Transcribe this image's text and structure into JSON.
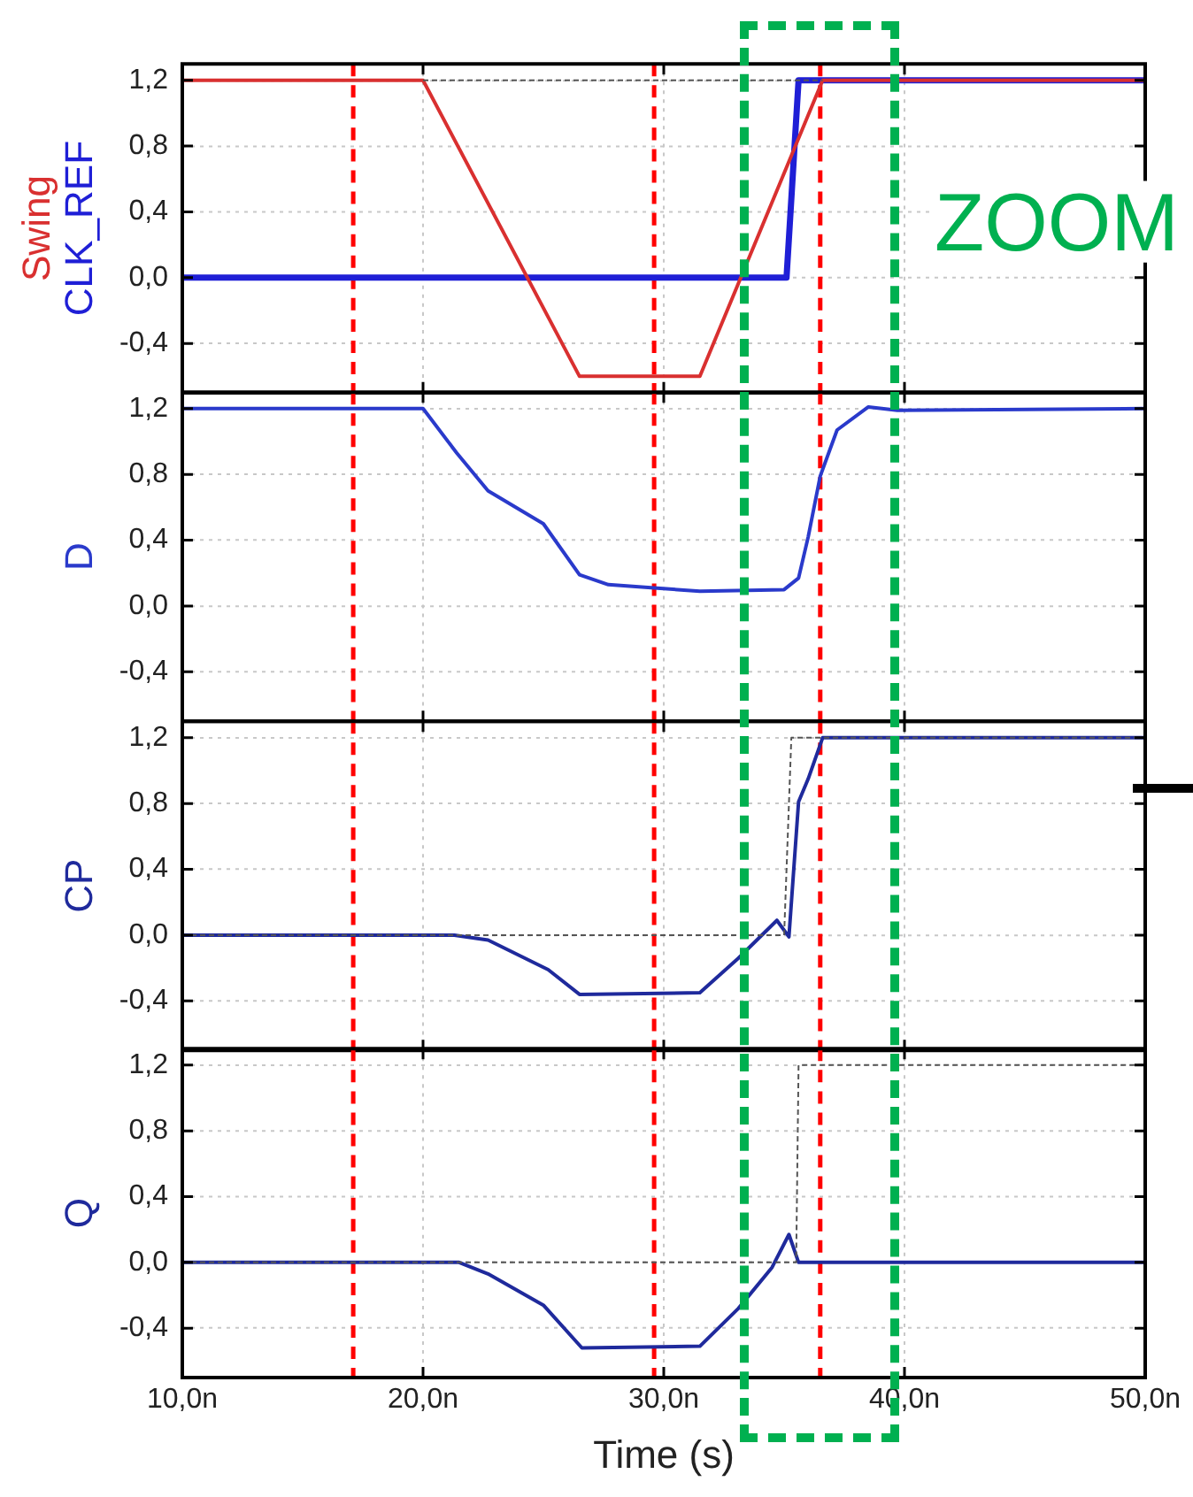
{
  "chart_data": [
    {
      "type": "line",
      "tick_labels": "y",
      "grid": true,
      "legend": false,
      "marker": "none",
      "xlim": [
        10,
        50
      ],
      "ylim": [
        -0.7,
        1.3
      ],
      "xticks": [
        {
          "value": 10,
          "label": null
        },
        {
          "value": 20,
          "label": null
        },
        {
          "value": 30,
          "label": null
        },
        {
          "value": 40,
          "label": null
        },
        {
          "value": 50,
          "label": null
        }
      ],
      "yticks": [
        {
          "value": -0.4,
          "label": "-0,4"
        },
        {
          "value": 0,
          "label": "0,0"
        },
        {
          "value": 0.4,
          "label": "0,4"
        },
        {
          "value": 0.8,
          "label": "0,8"
        },
        {
          "value": 1.2,
          "label": "1,2"
        }
      ],
      "annotations": [
        "ZOOM"
      ],
      "ref_lines": [
        {
          "axis": "x",
          "value": 17.1,
          "color": "#ff0000",
          "line_style": "dashed"
        },
        {
          "axis": "x",
          "value": 29.6,
          "color": "#ff0000",
          "line_style": "dashed"
        },
        {
          "axis": "x",
          "value": 36.5,
          "color": "#ff0000",
          "line_style": "dashed"
        }
      ],
      "series": [
        {
          "name": "Swing",
          "color": "#d93030",
          "x": [
            10,
            20,
            26.5,
            31.5,
            36.6,
            50
          ],
          "values": [
            1.2,
            1.2,
            -0.6,
            -0.6,
            1.2,
            1.2
          ]
        },
        {
          "name": "CLK_REF",
          "color": "#1f1fd6",
          "x": [
            10,
            35.1,
            35.6,
            50
          ],
          "values": [
            0,
            0,
            1.2,
            1.2
          ]
        },
        {
          "color": "#555555",
          "line_style": "dashed",
          "x": [
            20,
            36.6
          ],
          "values": [
            1.2,
            1.2
          ]
        }
      ]
    },
    {
      "type": "line",
      "tick_labels": "y",
      "grid": true,
      "legend": false,
      "marker": "none",
      "xlim": [
        10,
        50
      ],
      "ylim": [
        -0.7,
        1.3
      ],
      "xticks": [
        {
          "value": 10,
          "label": null
        },
        {
          "value": 20,
          "label": null
        },
        {
          "value": 30,
          "label": null
        },
        {
          "value": 40,
          "label": null
        },
        {
          "value": 50,
          "label": null
        }
      ],
      "yticks": [
        {
          "value": -0.4,
          "label": "-0,4"
        },
        {
          "value": 0,
          "label": "0,0"
        },
        {
          "value": 0.4,
          "label": "0,4"
        },
        {
          "value": 0.8,
          "label": "0,8"
        },
        {
          "value": 1.2,
          "label": "1,2"
        }
      ],
      "ref_lines": [
        {
          "axis": "x",
          "value": 17.1,
          "color": "#ff0000",
          "line_style": "dashed"
        },
        {
          "axis": "x",
          "value": 29.6,
          "color": "#ff0000",
          "line_style": "dashed"
        },
        {
          "axis": "x",
          "value": 36.5,
          "color": "#ff0000",
          "line_style": "dashed"
        }
      ],
      "series": [
        {
          "name": "D",
          "color": "#2a3acb",
          "x": [
            10,
            20,
            21.4,
            22.7,
            25,
            26.5,
            27.7,
            29.6,
            31.5,
            35,
            35.6,
            36,
            36.5,
            37.2,
            38.5,
            39.7,
            50
          ],
          "values": [
            1.2,
            1.2,
            0.93,
            0.7,
            0.5,
            0.19,
            0.13,
            0.11,
            0.09,
            0.1,
            0.17,
            0.42,
            0.79,
            1.07,
            1.21,
            1.19,
            1.2
          ]
        }
      ]
    },
    {
      "type": "line",
      "tick_labels": "y",
      "grid": true,
      "legend": false,
      "marker": "none",
      "xlim": [
        10,
        50
      ],
      "ylim": [
        -0.7,
        1.3
      ],
      "xticks": [
        {
          "value": 10,
          "label": null
        },
        {
          "value": 20,
          "label": null
        },
        {
          "value": 30,
          "label": null
        },
        {
          "value": 40,
          "label": null
        },
        {
          "value": 50,
          "label": null
        }
      ],
      "yticks": [
        {
          "value": -0.4,
          "label": "-0,4"
        },
        {
          "value": 0,
          "label": "0,0"
        },
        {
          "value": 0.4,
          "label": "0,4"
        },
        {
          "value": 0.8,
          "label": "0,8"
        },
        {
          "value": 1.2,
          "label": "1,2"
        }
      ],
      "ref_lines": [
        {
          "axis": "x",
          "value": 17.1,
          "color": "#ff0000",
          "line_style": "dashed"
        },
        {
          "axis": "x",
          "value": 29.6,
          "color": "#ff0000",
          "line_style": "dashed"
        },
        {
          "axis": "x",
          "value": 36.5,
          "color": "#ff0000",
          "line_style": "dashed"
        }
      ],
      "series": [
        {
          "name": "CP",
          "color": "#1f2a9c",
          "x": [
            10,
            21.3,
            22.7,
            25.2,
            26.5,
            31.5,
            33.1,
            34.7,
            35.2,
            35.6,
            36,
            36.6,
            50
          ],
          "values": [
            0,
            0,
            -0.03,
            -0.21,
            -0.36,
            -0.35,
            -0.14,
            0.09,
            -0.01,
            0.81,
            0.95,
            1.2,
            1.2
          ]
        },
        {
          "color": "#555555",
          "line_style": "dashed",
          "x": [
            10,
            35,
            35.3,
            50
          ],
          "values": [
            0,
            0,
            1.2,
            1.2
          ]
        }
      ]
    },
    {
      "type": "line",
      "grid": true,
      "legend": false,
      "marker": "none",
      "xlabel": "Time (s)",
      "xlim": [
        10,
        50
      ],
      "ylim": [
        -0.7,
        1.3
      ],
      "xticks": [
        {
          "value": 10,
          "label": "10,0n"
        },
        {
          "value": 20,
          "label": "20,0n"
        },
        {
          "value": 30,
          "label": "30,0n"
        },
        {
          "value": 40,
          "label": "40,0n"
        },
        {
          "value": 50,
          "label": "50,0n"
        }
      ],
      "yticks": [
        {
          "value": -0.4,
          "label": "-0,4"
        },
        {
          "value": 0,
          "label": "0,0"
        },
        {
          "value": 0.4,
          "label": "0,4"
        },
        {
          "value": 0.8,
          "label": "0,8"
        },
        {
          "value": 1.2,
          "label": "1,2"
        }
      ],
      "ref_lines": [
        {
          "axis": "x",
          "value": 17.1,
          "color": "#ff0000",
          "line_style": "dashed"
        },
        {
          "axis": "x",
          "value": 29.6,
          "color": "#ff0000",
          "line_style": "dashed"
        },
        {
          "axis": "x",
          "value": 36.5,
          "color": "#ff0000",
          "line_style": "dashed"
        }
      ],
      "series": [
        {
          "name": "Q",
          "color": "#1f2a9c",
          "x": [
            10,
            21.5,
            22.7,
            25,
            26.6,
            31.5,
            33.1,
            34.5,
            35.2,
            35.6,
            50
          ],
          "values": [
            0,
            0,
            -0.07,
            -0.26,
            -0.52,
            -0.51,
            -0.28,
            -0.03,
            0.17,
            0,
            0
          ]
        },
        {
          "color": "#555555",
          "line_style": "dashed",
          "x": [
            10,
            35.5,
            35.6,
            50
          ],
          "values": [
            0,
            0,
            1.2,
            1.2
          ]
        }
      ]
    }
  ]
}
